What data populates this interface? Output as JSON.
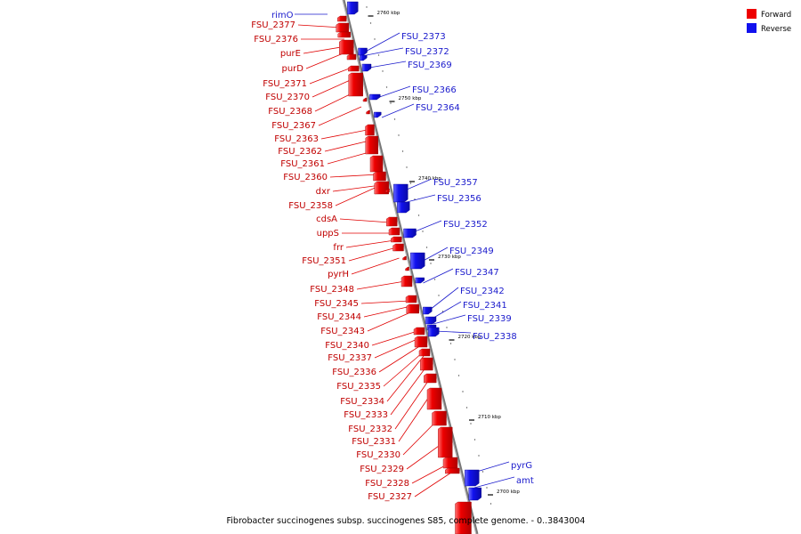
{
  "legend": [
    {
      "label": "Forward",
      "color": "#ee0000"
    },
    {
      "label": "Reverse",
      "color": "#1111ee"
    }
  ],
  "caption": "Fibrobacter succinogenes subsp. succinogenes S85, complete genome. - 0..3843004",
  "colors": {
    "forward": "#ee0000",
    "reverse": "#1111ee",
    "axis": "#777777"
  },
  "ticks": [
    {
      "label": "2760 kbp",
      "kbp": 2760
    },
    {
      "label": "2750 kbp",
      "kbp": 2750
    },
    {
      "label": "2740 kbp",
      "kbp": 2740
    },
    {
      "label": "2730 kbp",
      "kbp": 2730
    },
    {
      "label": "2720 kbp",
      "kbp": 2720
    },
    {
      "label": "2710 kbp",
      "kbp": 2710
    },
    {
      "label": "2700 kbp",
      "kbp": 2700
    }
  ],
  "genes_forward": [
    "FSU_2377",
    "FSU_2376",
    "purE",
    "purD",
    "FSU_2371",
    "FSU_2370",
    "FSU_2368",
    "FSU_2367",
    "FSU_2363",
    "FSU_2362",
    "FSU_2361",
    "FSU_2360",
    "dxr",
    "FSU_2358",
    "cdsA",
    "uppS",
    "frr",
    "FSU_2351",
    "pyrH",
    "FSU_2348",
    "FSU_2345",
    "FSU_2344",
    "FSU_2343",
    "FSU_2340",
    "FSU_2337",
    "FSU_2336",
    "FSU_2335",
    "FSU_2334",
    "FSU_2333",
    "FSU_2332",
    "FSU_2331",
    "FSU_2330",
    "FSU_2329",
    "FSU_2328",
    "FSU_2327"
  ],
  "genes_reverse": [
    "rimO",
    "FSU_2373",
    "FSU_2372",
    "FSU_2369",
    "FSU_2366",
    "FSU_2364",
    "FSU_2357",
    "FSU_2356",
    "FSU_2352",
    "FSU_2349",
    "FSU_2347",
    "FSU_2342",
    "FSU_2341",
    "FSU_2339",
    "FSU_2338",
    "pyrG",
    "amt"
  ]
}
